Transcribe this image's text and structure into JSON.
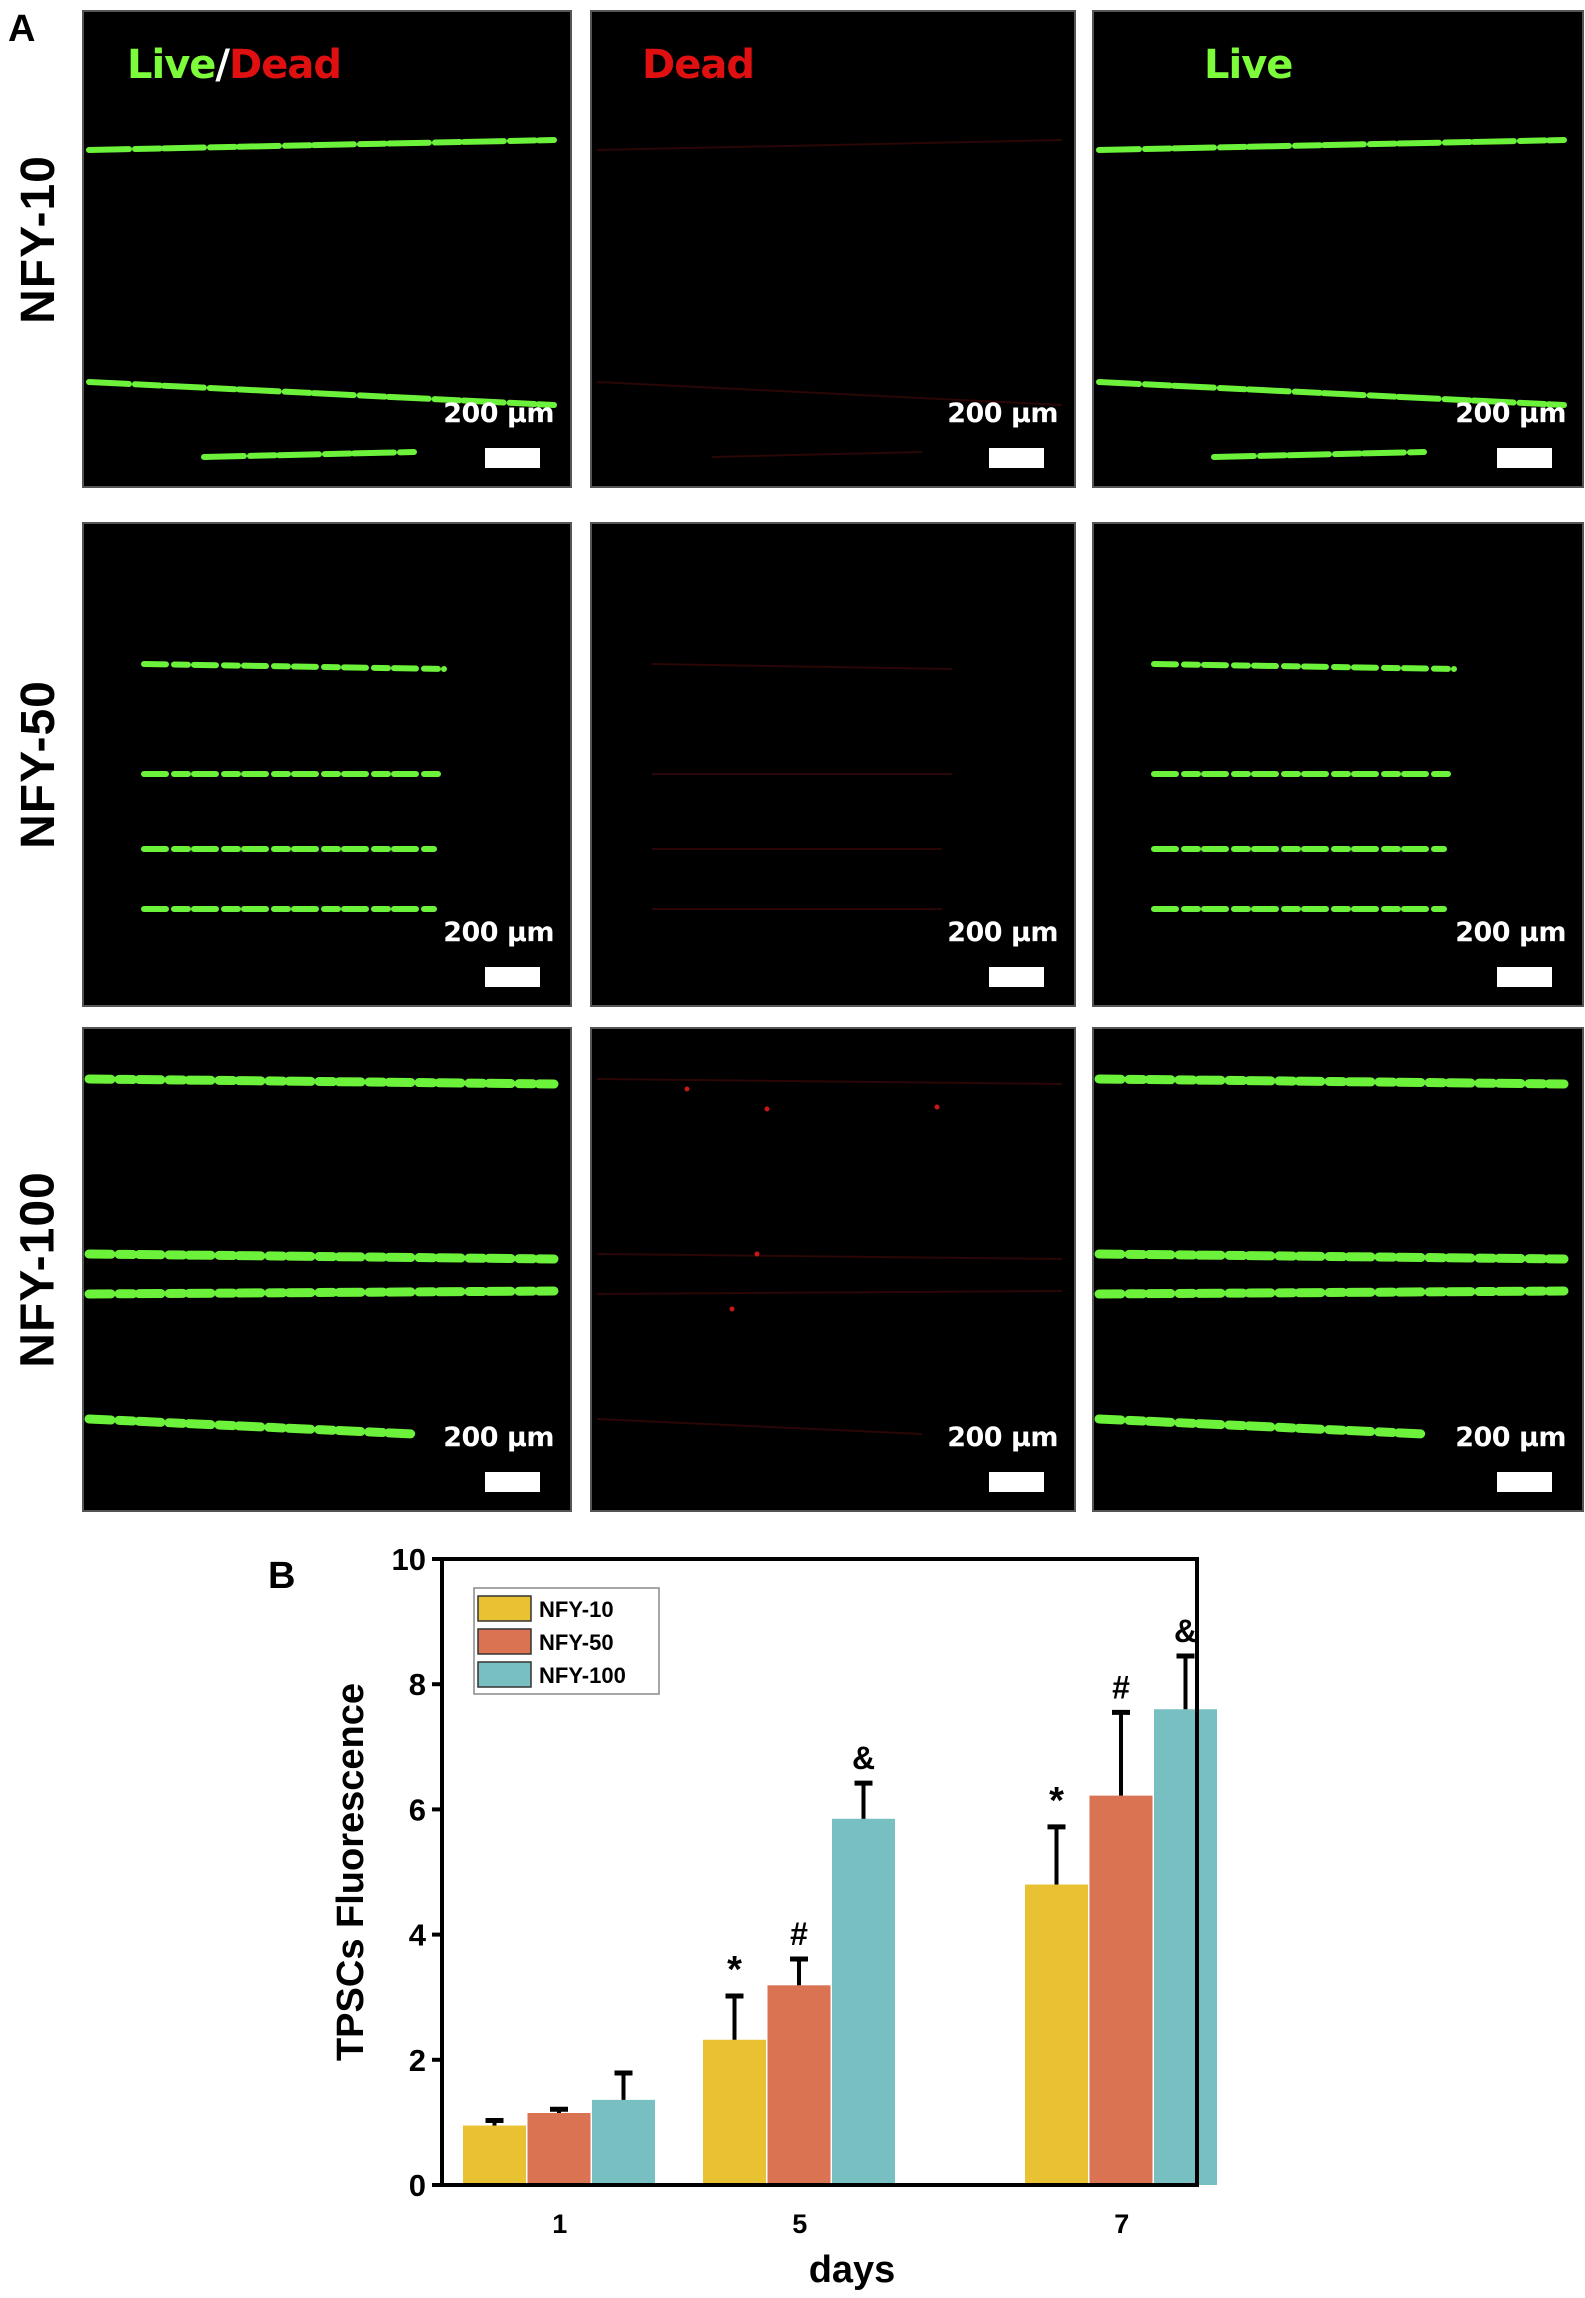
{
  "panel_a": {
    "letter": "A",
    "column_titles": [
      {
        "parts": [
          {
            "text": "Live",
            "color": "#7CFC3A"
          },
          {
            "text": "/",
            "color": "#FFFFFF"
          },
          {
            "text": "Dead",
            "color": "#E01010"
          }
        ]
      },
      {
        "parts": [
          {
            "text": "Dead",
            "color": "#E01010"
          }
        ]
      },
      {
        "parts": [
          {
            "text": "Live",
            "color": "#7CFC3A"
          }
        ]
      }
    ],
    "rows": [
      {
        "label": "NFY-10",
        "scale_label": "200 µm"
      },
      {
        "label": "NFY-50",
        "scale_label": "200 µm"
      },
      {
        "label": "NFY-100",
        "scale_label": "200 µm"
      }
    ],
    "scale_label": "200 µm"
  },
  "panel_b": {
    "letter": "B"
  },
  "chart_data": {
    "type": "bar",
    "title": "",
    "xlabel": "days",
    "ylabel": "TPSCs Fluorescence",
    "categories": [
      "1",
      "5",
      "7"
    ],
    "ylim": [
      0,
      10
    ],
    "yticks": [
      0,
      2,
      4,
      6,
      8,
      10
    ],
    "grid": false,
    "legend_position": "upper left",
    "series": [
      {
        "name": "NFY-10",
        "color": "#E8C232",
        "values": [
          0.95,
          2.32,
          4.8
        ],
        "errors": [
          0.08,
          0.7,
          0.92
        ],
        "annotations": [
          "",
          "*",
          "*"
        ]
      },
      {
        "name": "NFY-50",
        "color": "#D97352",
        "values": [
          1.15,
          3.19,
          6.22
        ],
        "errors": [
          0.06,
          0.42,
          1.33
        ],
        "annotations": [
          "",
          "#",
          "#"
        ]
      },
      {
        "name": "NFY-100",
        "color": "#78BFC1",
        "values": [
          1.36,
          5.85,
          7.6
        ],
        "errors": [
          0.43,
          0.57,
          0.85
        ],
        "annotations": [
          "",
          "&",
          "&"
        ]
      }
    ]
  }
}
